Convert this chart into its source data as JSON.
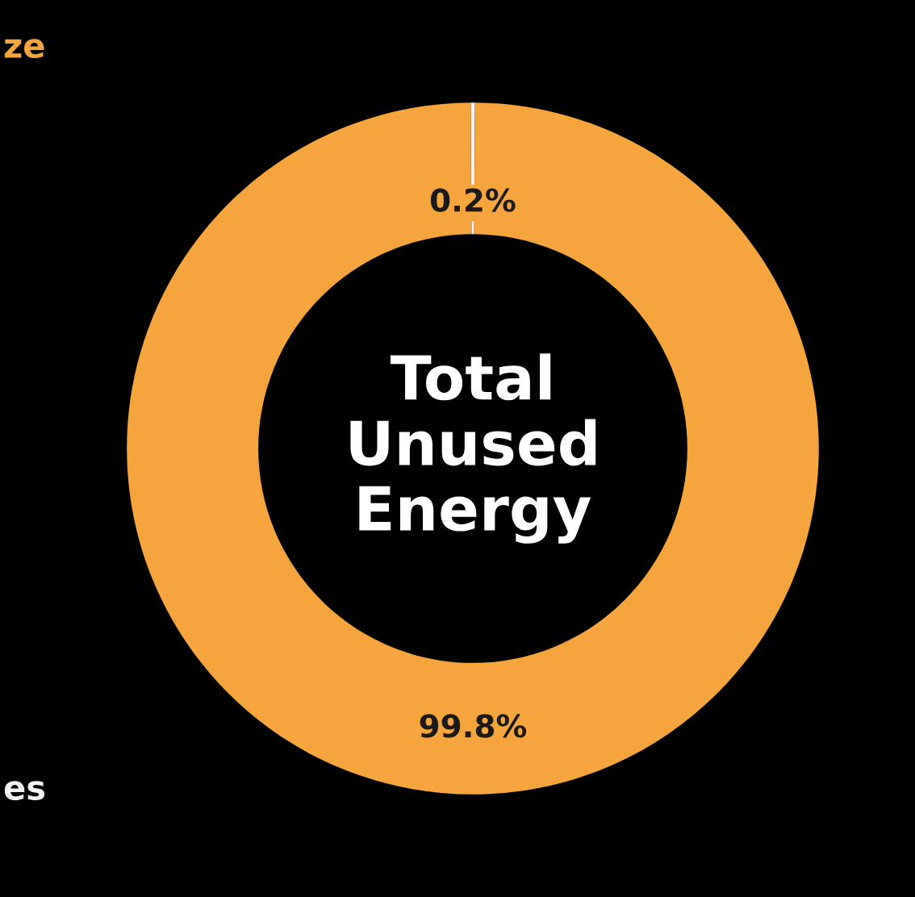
{
  "chart_data": {
    "type": "donut",
    "title": "Total Unused Energy",
    "categories": [
      null,
      null
    ],
    "annotations": [
      "ze",
      "es"
    ],
    "values": [
      0.2,
      99.8
    ],
    "colors": [
      "#f2f2f2",
      "#f5a53c"
    ],
    "value_labels": [
      "0.2%",
      "99.8%"
    ]
  }
}
